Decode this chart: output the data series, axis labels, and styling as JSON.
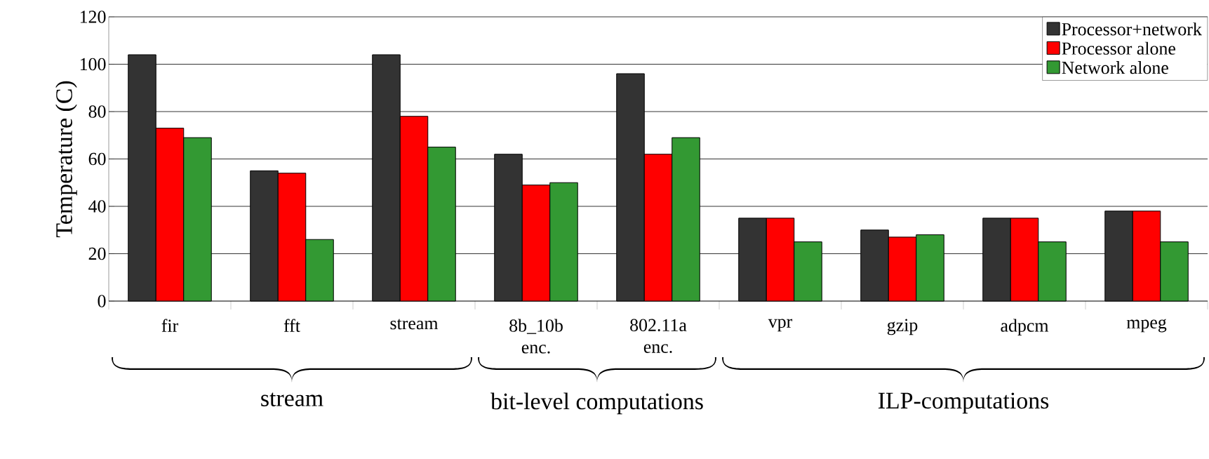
{
  "chart_data": {
    "type": "bar",
    "ylabel": "Temperature (C)",
    "categories": [
      "fir",
      "fft",
      "stream",
      "8b_10b enc.",
      "802.11a enc.",
      "vpr",
      "gzip",
      "adpcm",
      "mpeg"
    ],
    "series": [
      {
        "name": "Processor+network",
        "color": "#333333",
        "values": [
          104,
          55,
          104,
          62,
          96,
          35,
          30,
          35,
          38
        ]
      },
      {
        "name": "Processor alone",
        "color": "#ff0000",
        "values": [
          73,
          54,
          78,
          49,
          62,
          35,
          27,
          35,
          38
        ]
      },
      {
        "name": "Network alone",
        "color": "#339933",
        "values": [
          69,
          26,
          65,
          50,
          69,
          25,
          28,
          25,
          25
        ]
      }
    ],
    "ylim": [
      0,
      120
    ],
    "yticks": [
      0,
      20,
      40,
      60,
      80,
      100,
      120
    ],
    "grid": "y",
    "legend": "top right",
    "annotations": [
      "stream",
      "bit-level computations",
      "ILP-computations"
    ]
  }
}
